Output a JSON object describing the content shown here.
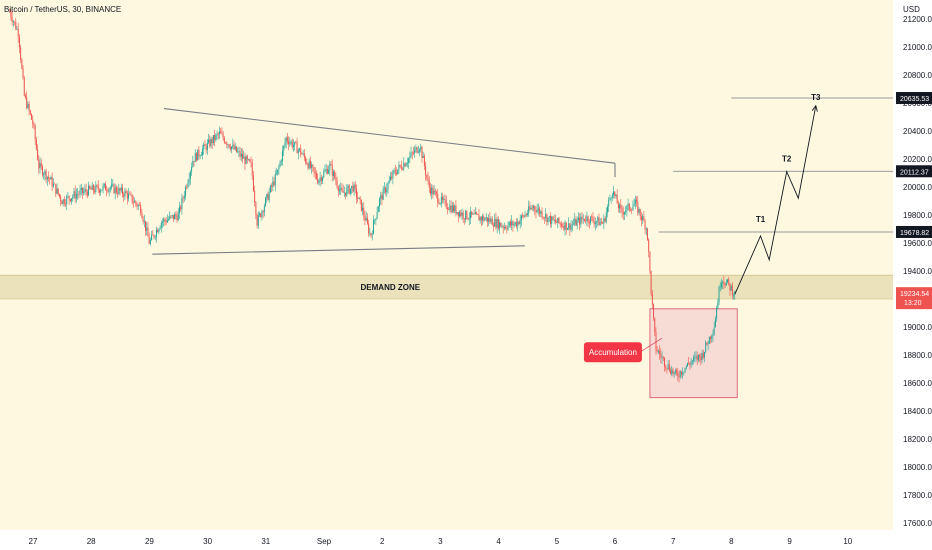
{
  "header": {
    "title": "Bitcoin / TetherUS, 30, BINANCE",
    "currency": "USD"
  },
  "colors": {
    "background": "#fdf8df",
    "up": "#26a69a",
    "down": "#ef5350",
    "demand_zone": "#e8ddb4",
    "accum_fill": "#f3c4cc",
    "accum_border": "#d94a6a",
    "accum_label": "#f23645",
    "price_tag": "#ef5350",
    "target_tag": "#131722",
    "trendline": "#787b86"
  },
  "chart_data": {
    "type": "candlestick",
    "symbol": "Bitcoin / TetherUS",
    "interval": "30",
    "exchange": "BINANCE",
    "ylim": [
      17500,
      21350
    ],
    "y_ticks": [
      17600,
      17800,
      18000,
      18200,
      18400,
      18600,
      18800,
      19000,
      19200,
      19400,
      19600,
      19800,
      20000,
      20200,
      20400,
      20600,
      20800,
      21000,
      21200
    ],
    "x_ticks": [
      {
        "label": "27",
        "day": 27
      },
      {
        "label": "28",
        "day": 28
      },
      {
        "label": "29",
        "day": 29
      },
      {
        "label": "30",
        "day": 30
      },
      {
        "label": "31",
        "day": 31
      },
      {
        "label": "Sep",
        "day": 32
      },
      {
        "label": "2",
        "day": 33
      },
      {
        "label": "3",
        "day": 34
      },
      {
        "label": "4",
        "day": 35
      },
      {
        "label": "5",
        "day": 36
      },
      {
        "label": "6",
        "day": 37
      },
      {
        "label": "7",
        "day": 38
      },
      {
        "label": "8",
        "day": 39
      },
      {
        "label": "9",
        "day": 40
      },
      {
        "label": "10",
        "day": 41
      }
    ],
    "price_path": [
      [
        26.6,
        21250
      ],
      [
        26.75,
        21100
      ],
      [
        26.85,
        20650
      ],
      [
        27.0,
        20450
      ],
      [
        27.1,
        20150
      ],
      [
        27.3,
        20050
      ],
      [
        27.5,
        19900
      ],
      [
        27.75,
        19950
      ],
      [
        28.0,
        19980
      ],
      [
        28.3,
        20000
      ],
      [
        28.6,
        19950
      ],
      [
        28.85,
        19850
      ],
      [
        29.0,
        19600
      ],
      [
        29.2,
        19750
      ],
      [
        29.5,
        19800
      ],
      [
        29.75,
        20200
      ],
      [
        30.0,
        20300
      ],
      [
        30.2,
        20380
      ],
      [
        30.5,
        20250
      ],
      [
        30.75,
        20150
      ],
      [
        30.85,
        19750
      ],
      [
        31.0,
        19900
      ],
      [
        31.2,
        20100
      ],
      [
        31.35,
        20350
      ],
      [
        31.6,
        20250
      ],
      [
        31.9,
        20050
      ],
      [
        32.1,
        20150
      ],
      [
        32.3,
        19950
      ],
      [
        32.5,
        20000
      ],
      [
        32.65,
        19850
      ],
      [
        32.8,
        19650
      ],
      [
        32.95,
        19900
      ],
      [
        33.2,
        20100
      ],
      [
        33.45,
        20200
      ],
      [
        33.65,
        20300
      ],
      [
        33.8,
        20000
      ],
      [
        34.0,
        19900
      ],
      [
        34.4,
        19800
      ],
      [
        34.8,
        19770
      ],
      [
        35.1,
        19720
      ],
      [
        35.3,
        19740
      ],
      [
        35.6,
        19860
      ],
      [
        35.9,
        19760
      ],
      [
        36.2,
        19720
      ],
      [
        36.5,
        19780
      ],
      [
        36.8,
        19740
      ],
      [
        36.95,
        19980
      ],
      [
        37.1,
        19820
      ],
      [
        37.35,
        19880
      ],
      [
        37.55,
        19700
      ],
      [
        37.63,
        19200
      ],
      [
        37.7,
        18850
      ],
      [
        37.85,
        18750
      ],
      [
        38.05,
        18650
      ],
      [
        38.3,
        18750
      ],
      [
        38.5,
        18800
      ],
      [
        38.7,
        19000
      ],
      [
        38.82,
        19350
      ],
      [
        38.95,
        19300
      ],
      [
        39.06,
        19234
      ]
    ],
    "trendline_upper": [
      [
        29.25,
        20560
      ],
      [
        37.0,
        20170
      ]
    ],
    "trendline_lower": [
      [
        29.05,
        19520
      ],
      [
        35.45,
        19580
      ]
    ],
    "demand_zone": {
      "label": "DEMAND ZONE",
      "from": 19200,
      "to": 19370
    },
    "accumulation": {
      "label": "Accumulation",
      "x_from": 37.6,
      "x_to": 39.1,
      "y_from": 18495,
      "y_to": 19130
    },
    "projection_path": [
      [
        39.06,
        19234
      ],
      [
        39.5,
        19650
      ],
      [
        39.65,
        19480
      ],
      [
        39.95,
        20110
      ],
      [
        40.15,
        19920
      ],
      [
        40.45,
        20580
      ]
    ],
    "targets": [
      {
        "name": "T1",
        "value": 19678.82,
        "tag": "19678.82",
        "from_day": 37.75,
        "mark_day": 39.5
      },
      {
        "name": "T2",
        "value": 20112.37,
        "tag": "20112.37",
        "from_day": 38.0,
        "mark_day": 39.95
      },
      {
        "name": "T3",
        "value": 20635.53,
        "tag": "20635.53",
        "from_day": 39.0,
        "mark_day": 40.45
      }
    ],
    "last_price": {
      "value": 19234.54,
      "tag": "19234.54",
      "countdown": "13:20"
    }
  }
}
